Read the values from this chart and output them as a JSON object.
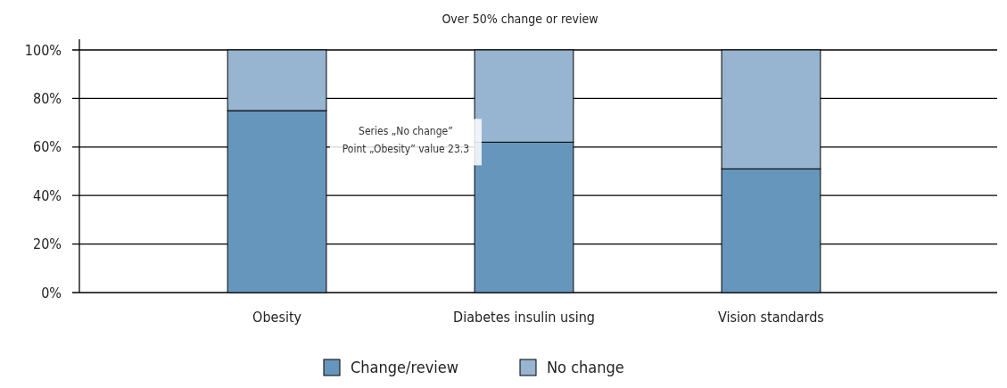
{
  "chart_data": {
    "type": "bar",
    "title": "Over 50% change or review",
    "categories": [
      "Obesity",
      "Diabetes insulin using",
      "Vision standards"
    ],
    "stacked": true,
    "series": [
      {
        "name": "Change/review",
        "color": "#6796bd",
        "values": [
          75,
          62,
          51
        ]
      },
      {
        "name": "No change",
        "color": "#97b4d0",
        "values": [
          25,
          38,
          49
        ]
      }
    ],
    "ylim": [
      0,
      100
    ],
    "yticks": [
      {
        "value": 0,
        "label": "0%"
      },
      {
        "value": 20,
        "label": "20%"
      },
      {
        "value": 40,
        "label": "40%"
      },
      {
        "value": 60,
        "label": "60%"
      },
      {
        "value": 80,
        "label": "80%"
      },
      {
        "value": 100,
        "label": "100%"
      }
    ],
    "grid": "y",
    "legend": "bottom",
    "annotations": [
      "Series „No change”",
      "Point „Obesity” value 23.3"
    ]
  }
}
